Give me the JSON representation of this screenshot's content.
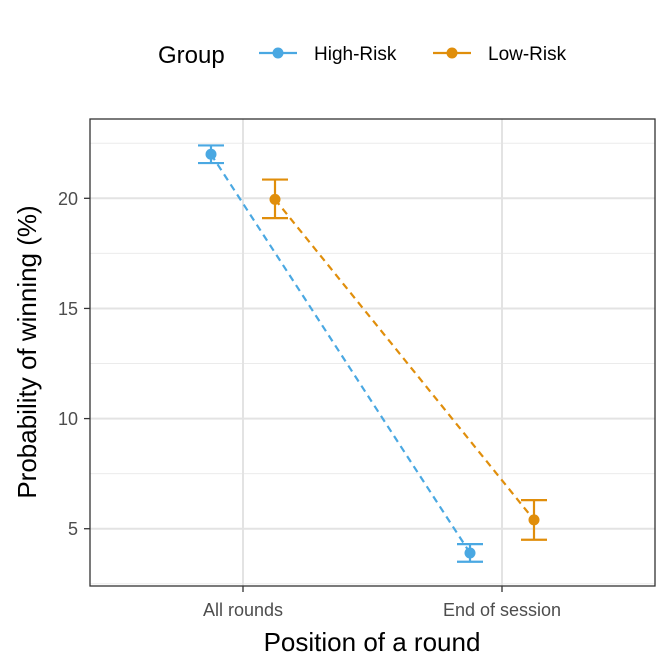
{
  "chart_data": {
    "type": "line",
    "xlabel": "Position of a round",
    "ylabel": "Probability of winning (%)",
    "categories": [
      "All rounds",
      "End of session"
    ],
    "ylim": [
      2.4,
      23.6
    ],
    "yticks": [
      5,
      10,
      15,
      20
    ],
    "grid": true,
    "legend": {
      "title": "Group",
      "placement": "top"
    },
    "series": [
      {
        "name": "High-Risk",
        "color": "#4aa8e2",
        "values": [
          22.0,
          3.9
        ],
        "lower": [
          21.6,
          3.5
        ],
        "upper": [
          22.4,
          4.3
        ]
      },
      {
        "name": "Low-Risk",
        "color": "#e08e0b",
        "values": [
          19.95,
          5.4
        ],
        "lower": [
          19.1,
          4.5
        ],
        "upper": [
          20.85,
          6.3
        ]
      }
    ]
  }
}
